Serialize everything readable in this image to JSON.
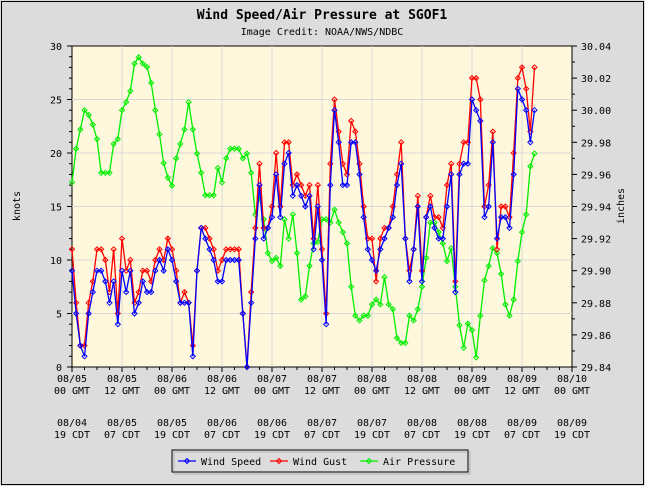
{
  "chart_data": {
    "type": "line",
    "title": "Wind Speed/Air Pressure at SGOF1",
    "subtitle": "Image Credit: NOAA/NWS/NDBC",
    "ylabel": "knots",
    "y2label": "inches",
    "ylim": [
      0,
      30
    ],
    "y2lim": [
      29.84,
      30.04
    ],
    "grid": true,
    "legend_placement": "bottom",
    "yticks": [
      "0",
      "5",
      "10",
      "15",
      "20",
      "25",
      "30"
    ],
    "y2ticks": [
      "29.84",
      "29.86",
      "29.88",
      "29.90",
      "29.92",
      "29.94",
      "29.96",
      "29.98",
      "30.00",
      "30.02",
      "30.04"
    ],
    "xtick_hours": [
      0,
      12,
      24,
      36,
      48,
      60,
      72,
      84,
      96,
      108,
      120
    ],
    "xticks_gmt": [
      [
        "08/05",
        "00 GMT"
      ],
      [
        "08/05",
        "12 GMT"
      ],
      [
        "08/06",
        "00 GMT"
      ],
      [
        "08/06",
        "12 GMT"
      ],
      [
        "08/07",
        "00 GMT"
      ],
      [
        "08/07",
        "12 GMT"
      ],
      [
        "08/08",
        "00 GMT"
      ],
      [
        "08/08",
        "12 GMT"
      ],
      [
        "08/09",
        "00 GMT"
      ],
      [
        "08/09",
        "12 GMT"
      ],
      [
        "08/10",
        "00 GMT"
      ]
    ],
    "xticks_local": [
      [
        "08/04",
        "19 CDT"
      ],
      [
        "08/05",
        "07 CDT"
      ],
      [
        "08/05",
        "19 CDT"
      ],
      [
        "08/06",
        "07 CDT"
      ],
      [
        "08/06",
        "19 CDT"
      ],
      [
        "08/07",
        "07 CDT"
      ],
      [
        "08/07",
        "19 CDT"
      ],
      [
        "08/08",
        "07 CDT"
      ],
      [
        "08/08",
        "19 CDT"
      ],
      [
        "08/09",
        "07 CDT"
      ],
      [
        "08/09",
        "19 CDT"
      ]
    ],
    "x_unit": "hours since 08/05 00 GMT",
    "x_start": 0,
    "x_step": 1,
    "series": [
      {
        "name": "Wind Speed",
        "color": "#0000ff",
        "axis": "left",
        "values": [
          9,
          5,
          2,
          1,
          5,
          7,
          9,
          9,
          8,
          6,
          8,
          4,
          9,
          7,
          9,
          5,
          6,
          8,
          7,
          7,
          9,
          10,
          9,
          11,
          10,
          8,
          6,
          6,
          6,
          1,
          9,
          13,
          12,
          11,
          10,
          8,
          8,
          10,
          10,
          10,
          10,
          5,
          0,
          6,
          12,
          17,
          12,
          13,
          14,
          18,
          14,
          19,
          20,
          16,
          17,
          16,
          15,
          16,
          11,
          15,
          10,
          4,
          17,
          24,
          21,
          17,
          17,
          21,
          21,
          18,
          14,
          11,
          10,
          9,
          11,
          12,
          13,
          14,
          17,
          19,
          12,
          8,
          11,
          15,
          8,
          14,
          15,
          13,
          12,
          12,
          15,
          18,
          7,
          18,
          19,
          19,
          25,
          24,
          23,
          14,
          15,
          21,
          12,
          14,
          14,
          13,
          18,
          26,
          25,
          24,
          21,
          24
        ]
      },
      {
        "name": "Wind Gust",
        "color": "#ff0000",
        "axis": "left",
        "values": [
          11,
          6,
          2,
          2,
          6,
          8,
          11,
          11,
          10,
          7,
          11,
          5,
          12,
          9,
          10,
          6,
          7,
          9,
          9,
          8,
          10,
          11,
          10,
          12,
          11,
          9,
          6,
          7,
          6,
          2,
          9,
          13,
          13,
          12,
          11,
          9,
          10,
          11,
          11,
          11,
          11,
          5,
          0,
          7,
          13,
          19,
          13,
          13,
          15,
          20,
          15,
          21,
          21,
          17,
          18,
          17,
          16,
          17,
          12,
          17,
          11,
          5,
          19,
          25,
          22,
          19,
          18,
          23,
          22,
          19,
          15,
          12,
          12,
          8,
          12,
          13,
          13,
          15,
          18,
          21,
          12,
          9,
          11,
          16,
          9,
          14,
          16,
          14,
          14,
          13,
          17,
          19,
          8,
          19,
          21,
          21,
          27,
          27,
          25,
          15,
          17,
          22,
          11,
          15,
          15,
          14,
          20,
          27,
          28,
          26,
          22,
          28
        ]
      },
      {
        "name": "Air Pressure",
        "color": "#00ee00",
        "axis": "right",
        "values": [
          29.955,
          29.976,
          29.988,
          30.0,
          29.997,
          29.991,
          29.982,
          29.961,
          29.961,
          29.961,
          29.979,
          29.982,
          30.0,
          30.005,
          30.012,
          30.029,
          30.033,
          30.029,
          30.027,
          30.017,
          30.0,
          29.985,
          29.967,
          29.958,
          29.953,
          29.97,
          29.979,
          29.988,
          30.005,
          29.988,
          29.973,
          29.961,
          29.947,
          29.947,
          29.947,
          29.964,
          29.955,
          29.97,
          29.976,
          29.976,
          29.976,
          29.97,
          29.973,
          29.961,
          29.935,
          29.946,
          29.932,
          29.911,
          29.906,
          29.908,
          29.903,
          29.932,
          29.92,
          29.935,
          29.911,
          29.882,
          29.884,
          29.903,
          29.917,
          29.918,
          29.932,
          29.932,
          29.93,
          29.938,
          29.93,
          29.924,
          29.917,
          29.89,
          29.872,
          29.869,
          29.872,
          29.872,
          29.879,
          29.882,
          29.879,
          29.896,
          29.879,
          29.876,
          29.858,
          29.855,
          29.855,
          29.872,
          29.869,
          29.876,
          29.89,
          29.908,
          29.93,
          29.93,
          29.924,
          29.917,
          29.906,
          29.914,
          29.89,
          29.866,
          29.852,
          29.867,
          29.863,
          29.846,
          29.872,
          29.894,
          29.903,
          29.914,
          29.911,
          29.898,
          29.879,
          29.872,
          29.882,
          29.906,
          29.924,
          29.935,
          29.965,
          29.973
        ]
      }
    ]
  }
}
